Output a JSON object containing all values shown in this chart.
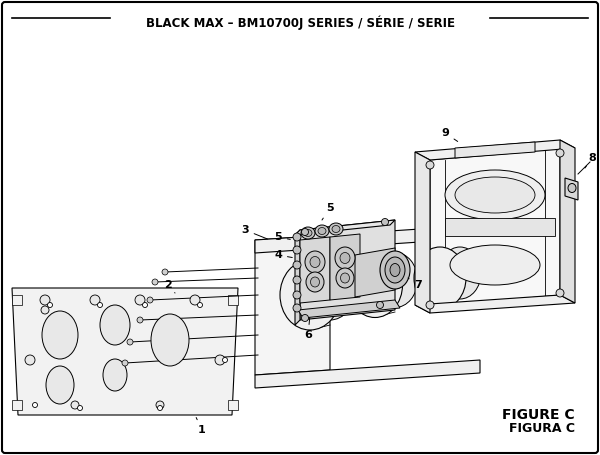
{
  "title": "BLACK MAX – BM10700J SERIES / SÉRIE / SERIE",
  "figure_label": "FIGURE C",
  "figura_label": "FIGURA C",
  "bg_color": "#ffffff",
  "line_color": "#000000",
  "title_fontsize": 8.5,
  "label_fontsize": 8,
  "fig_label_fontsize": 10
}
